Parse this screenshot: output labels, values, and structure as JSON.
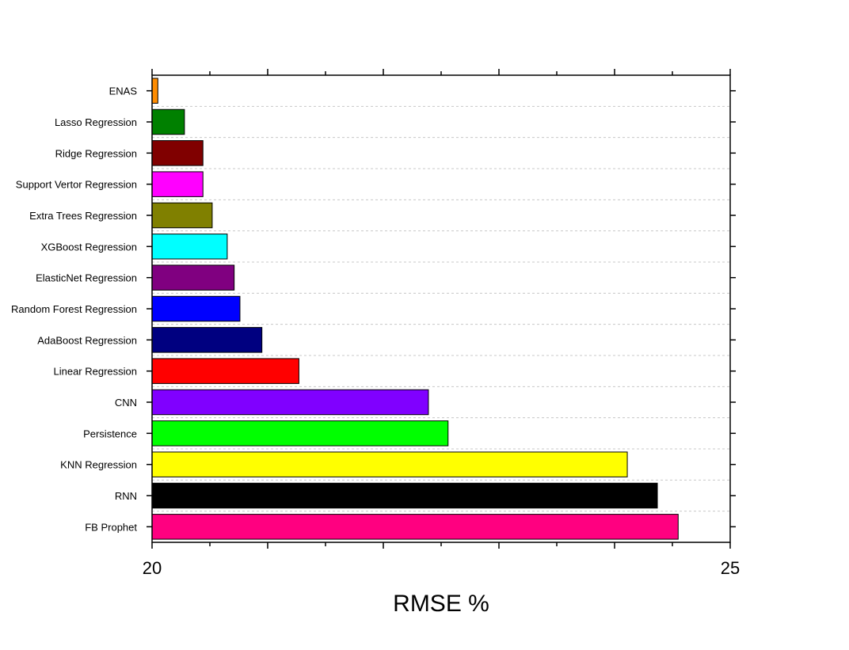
{
  "chart_data": {
    "type": "bar",
    "orientation": "horizontal",
    "categories": [
      "ENAS",
      "Lasso Regression",
      "Ridge Regression",
      "Support Vertor Regression",
      "Extra Trees Regression",
      "XGBoost Regression",
      "ElasticNet Regression",
      "Random Forest Regression",
      "AdaBoost Regression",
      "Linear Regression",
      "CNN",
      "Persistence",
      "KNN Regression",
      "RNN",
      "FB Prophet"
    ],
    "values": [
      20.05,
      20.28,
      20.44,
      20.44,
      20.52,
      20.65,
      20.71,
      20.76,
      20.95,
      21.27,
      22.39,
      22.56,
      24.11,
      24.37,
      24.55
    ],
    "colors": [
      "#ff8c00",
      "#008000",
      "#800000",
      "#ff00ff",
      "#808000",
      "#00ffff",
      "#800080",
      "#0000ff",
      "#000080",
      "#ff0000",
      "#8000ff",
      "#00ff00",
      "#ffff00",
      "#000000",
      "#ff0080"
    ],
    "title": "",
    "xlabel": "RMSE %",
    "ylabel": "",
    "xlim": [
      20,
      25
    ],
    "xticks": [
      "20",
      "25"
    ],
    "grid": "horizontal dashed",
    "legend": "none"
  }
}
